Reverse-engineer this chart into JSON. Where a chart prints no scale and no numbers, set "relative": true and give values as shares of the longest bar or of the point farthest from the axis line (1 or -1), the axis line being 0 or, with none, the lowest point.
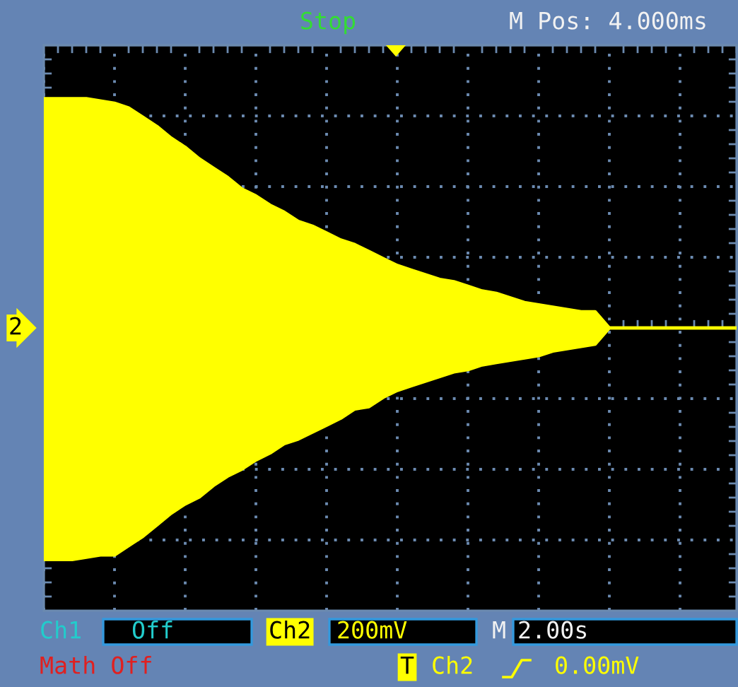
{
  "chart_data": {
    "type": "area",
    "relative": true,
    "grid": true,
    "categories": [
      null,
      null,
      null,
      null,
      null,
      null,
      null,
      null,
      null,
      null,
      null,
      null,
      null,
      null,
      null,
      null,
      null,
      null,
      null,
      null,
      null,
      null,
      null,
      null,
      null,
      null,
      null,
      null,
      null,
      null,
      null,
      null,
      null,
      null,
      null,
      null,
      null,
      null,
      null,
      null,
      null,
      null,
      null,
      null,
      null,
      null,
      null,
      null,
      null,
      null
    ],
    "series": [
      {
        "color": "#ffff00",
        "values": [
          0.99,
          0.99,
          0.99,
          0.99,
          0.98,
          0.97,
          0.95,
          0.91,
          0.87,
          0.82,
          0.78,
          0.73,
          0.69,
          0.65,
          0.6,
          0.57,
          0.53,
          0.5,
          0.46,
          0.44,
          0.41,
          0.38,
          0.36,
          0.33,
          0.3,
          0.27,
          0.25,
          0.23,
          0.21,
          0.2,
          0.18,
          0.16,
          0.15,
          0.13,
          0.11,
          0.1,
          0.09,
          0.08,
          0.07,
          0.07,
          0,
          0,
          0,
          0,
          0,
          0,
          0,
          0,
          0,
          0
        ]
      },
      {
        "color": "#ffff00",
        "values": [
          -1,
          -1,
          -1,
          -0.99,
          -0.98,
          -0.98,
          -0.94,
          -0.9,
          -0.85,
          -0.8,
          -0.76,
          -0.73,
          -0.68,
          -0.64,
          -0.61,
          -0.57,
          -0.54,
          -0.5,
          -0.48,
          -0.45,
          -0.42,
          -0.39,
          -0.35,
          -0.34,
          -0.3,
          -0.27,
          -0.25,
          -0.23,
          -0.21,
          -0.19,
          -0.18,
          -0.16,
          -0.15,
          -0.14,
          -0.13,
          -0.12,
          -0.1,
          -0.09,
          -0.08,
          -0.07,
          0,
          0,
          0,
          0,
          0,
          0,
          0,
          0,
          0,
          0
        ]
      }
    ],
    "annotations": [
      "2",
      "Stop",
      "M Pos: 4.000ms",
      "Ch1",
      "Off",
      "Ch2",
      "200mV",
      "M",
      "2.00s",
      "Math Off",
      "T",
      "Ch2",
      "0.00mV"
    ]
  }
}
